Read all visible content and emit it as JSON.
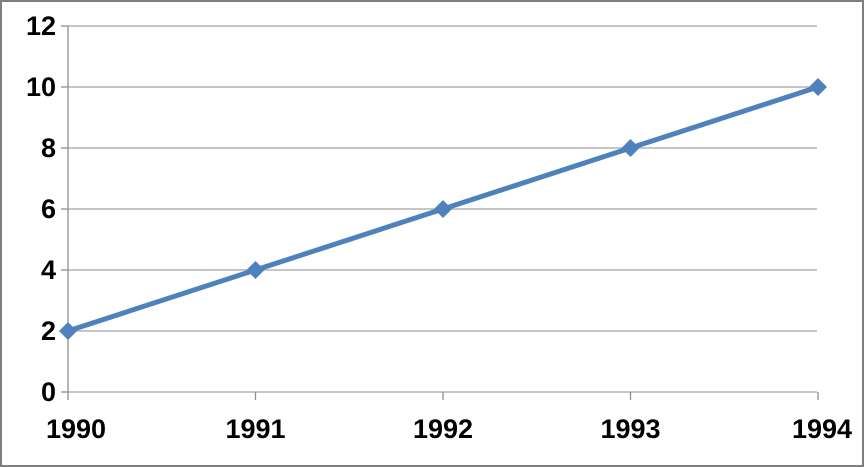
{
  "chart_data": {
    "type": "line",
    "categories": [
      "1990",
      "1991",
      "1992",
      "1993",
      "1994"
    ],
    "values": [
      2,
      4,
      6,
      8,
      10
    ],
    "title": "",
    "xlabel": "",
    "ylabel": "",
    "ylim": [
      0,
      12
    ],
    "ytick_step": 2,
    "ytick_labels": [
      "0",
      "2",
      "4",
      "6",
      "8",
      "10",
      "12"
    ],
    "grid": "horizontal",
    "legend": "none",
    "marker": "diamond",
    "colors": {
      "line": "#4F81BD",
      "marker": "#4F81BD",
      "gridline": "#A3A3A3",
      "axis": "#8E8E8E",
      "tick_label": "#000000",
      "frame_border": "#7F7F7F",
      "background": "#FFFFFF"
    }
  }
}
